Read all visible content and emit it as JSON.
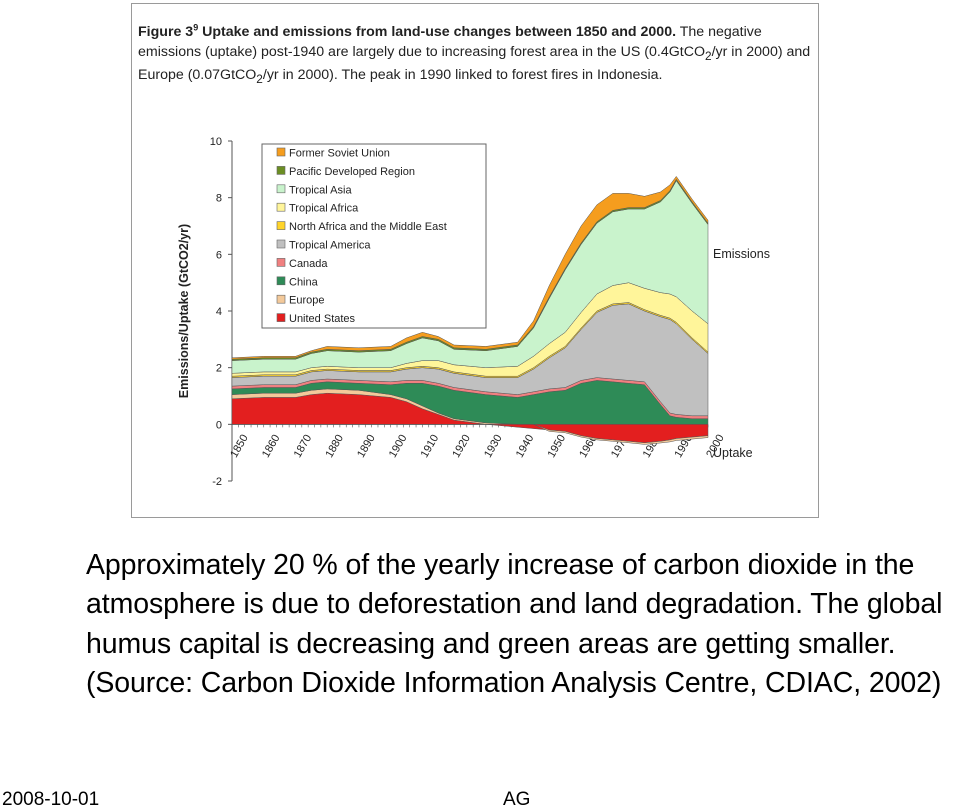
{
  "figure": {
    "caption_label": "Figure 3",
    "caption_footnote": "9",
    "caption_title": " Uptake and emissions from land-use changes between 1850 and 2000.",
    "caption_rest": " The negative emissions (uptake) post-1940 are largely due to increasing forest area in the US (0.4GtCO",
    "caption_sub1": "2",
    "caption_mid": "/yr in 2000) and Europe (0.07GtCO",
    "caption_sub2": "2",
    "caption_end": "/yr in 2000). The peak in 1990 linked to forest fires in Indonesia."
  },
  "chart_data": {
    "type": "area",
    "ylabel": "Emissions/Uptake (GtCO2/yr)",
    "xlabel": "",
    "ylim": [
      -2,
      10
    ],
    "xlim": [
      1850,
      2000
    ],
    "yticks": [
      -2,
      0,
      2,
      4,
      6,
      8,
      10
    ],
    "xticks": [
      1850,
      1860,
      1870,
      1880,
      1890,
      1900,
      1910,
      1920,
      1930,
      1940,
      1950,
      1960,
      1970,
      1980,
      1990,
      2000
    ],
    "annotations": [
      "Emissions",
      "Uptake"
    ],
    "legend_position": "top-left",
    "x": [
      1850,
      1860,
      1870,
      1875,
      1880,
      1890,
      1900,
      1905,
      1910,
      1915,
      1920,
      1930,
      1940,
      1945,
      1950,
      1955,
      1960,
      1965,
      1970,
      1975,
      1980,
      1985,
      1988,
      1990,
      1995,
      2000
    ],
    "series": [
      {
        "name": "United States",
        "color": "#e31f1f",
        "values": [
          0.9,
          0.95,
          0.95,
          1.05,
          1.1,
          1.05,
          0.95,
          0.8,
          0.55,
          0.35,
          0.15,
          0.0,
          -0.1,
          -0.15,
          -0.2,
          -0.25,
          -0.4,
          -0.5,
          -0.55,
          -0.6,
          -0.65,
          -0.6,
          -0.55,
          -0.5,
          -0.45,
          -0.4
        ]
      },
      {
        "name": "Europe",
        "color": "#f3c99a",
        "values": [
          0.15,
          0.15,
          0.15,
          0.15,
          0.15,
          0.15,
          0.1,
          0.1,
          0.1,
          0.05,
          0.05,
          0.05,
          0.0,
          0.0,
          -0.05,
          -0.05,
          -0.05,
          -0.05,
          -0.05,
          -0.05,
          -0.06,
          -0.06,
          -0.07,
          -0.07,
          -0.07,
          -0.07
        ]
      },
      {
        "name": "China",
        "color": "#2e8b57",
        "values": [
          0.2,
          0.2,
          0.2,
          0.25,
          0.25,
          0.25,
          0.35,
          0.55,
          0.8,
          0.95,
          1.0,
          1.0,
          0.95,
          1.05,
          1.15,
          1.2,
          1.45,
          1.55,
          1.5,
          1.45,
          1.4,
          0.7,
          0.3,
          0.25,
          0.2,
          0.2
        ]
      },
      {
        "name": "Canada",
        "color": "#f08080",
        "values": [
          0.1,
          0.1,
          0.1,
          0.1,
          0.1,
          0.1,
          0.1,
          0.1,
          0.1,
          0.1,
          0.1,
          0.1,
          0.1,
          0.1,
          0.1,
          0.1,
          0.1,
          0.1,
          0.1,
          0.1,
          0.1,
          0.1,
          0.1,
          0.1,
          0.1,
          0.1
        ]
      },
      {
        "name": "Tropical America",
        "color": "#c0c0c0",
        "values": [
          0.3,
          0.3,
          0.3,
          0.3,
          0.3,
          0.3,
          0.35,
          0.4,
          0.45,
          0.5,
          0.5,
          0.5,
          0.6,
          0.8,
          1.1,
          1.4,
          1.8,
          2.3,
          2.6,
          2.7,
          2.5,
          3.0,
          3.3,
          3.2,
          2.7,
          2.2
        ]
      },
      {
        "name": "North Africa and the Middle East",
        "color": "#ffd42a",
        "values": [
          0.05,
          0.05,
          0.05,
          0.05,
          0.05,
          0.05,
          0.05,
          0.05,
          0.05,
          0.05,
          0.05,
          0.05,
          0.05,
          0.05,
          0.05,
          0.05,
          0.05,
          0.05,
          0.05,
          0.05,
          0.05,
          0.05,
          0.05,
          0.05,
          0.05,
          0.05
        ]
      },
      {
        "name": "Tropical Africa",
        "color": "#fff59a",
        "values": [
          0.1,
          0.1,
          0.1,
          0.1,
          0.1,
          0.1,
          0.1,
          0.15,
          0.2,
          0.25,
          0.25,
          0.3,
          0.35,
          0.4,
          0.45,
          0.5,
          0.55,
          0.6,
          0.65,
          0.7,
          0.75,
          0.8,
          0.85,
          0.9,
          0.95,
          1.0
        ]
      },
      {
        "name": "Tropical Asia",
        "color": "#c9f3cc",
        "values": [
          0.45,
          0.45,
          0.45,
          0.5,
          0.55,
          0.55,
          0.6,
          0.7,
          0.8,
          0.7,
          0.55,
          0.6,
          0.7,
          1.0,
          1.6,
          2.2,
          2.4,
          2.5,
          2.6,
          2.6,
          2.8,
          3.2,
          3.6,
          4.1,
          3.8,
          3.5
        ]
      },
      {
        "name": "Pacific Developed Region",
        "color": "#6b8e23",
        "values": [
          0.05,
          0.05,
          0.05,
          0.05,
          0.05,
          0.05,
          0.05,
          0.05,
          0.05,
          0.05,
          0.05,
          0.05,
          0.05,
          0.05,
          0.05,
          0.05,
          0.05,
          0.05,
          0.05,
          0.05,
          0.05,
          0.05,
          0.05,
          0.05,
          0.05,
          0.05
        ]
      },
      {
        "name": "Former Soviet Union",
        "color": "#f59d1e",
        "values": [
          0.05,
          0.05,
          0.05,
          0.05,
          0.1,
          0.1,
          0.1,
          0.15,
          0.15,
          0.1,
          0.1,
          0.1,
          0.1,
          0.2,
          0.4,
          0.5,
          0.6,
          0.6,
          0.6,
          0.5,
          0.4,
          0.3,
          0.2,
          0.1,
          0.1,
          0.1
        ]
      }
    ]
  },
  "body_text": "Approximately 20 % of the yearly increase of carbon dioxide in the atmosphere is due to deforestation and land degradation. The global humus capital is decreasing and green areas are getting smaller. (Source: Carbon Dioxide Information Analysis Centre, CDIAC, 2002)",
  "footer": {
    "date": "2008-10-01",
    "author": "AG"
  }
}
